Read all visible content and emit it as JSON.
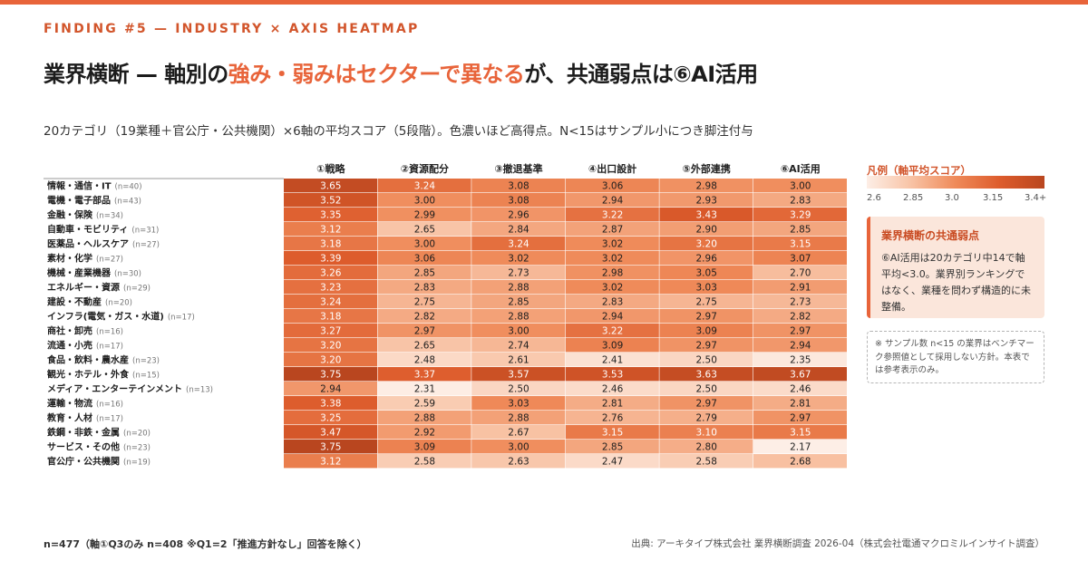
{
  "kicker": "FINDING #5 — INDUSTRY × AXIS HEATMAP",
  "headline": {
    "part1": "業界横断 — 軸別の",
    "highlight": "強み・弱みはセクターで異なる",
    "part2": "が、共通弱点は⑥AI活用"
  },
  "subtitle": "20カテゴリ（19業種＋官公庁・公共機関）×6軸の平均スコア（5段階）。色濃いほど高得点。N<15はサンプル小につき脚注付与",
  "legend": {
    "title": "凡例（軸平均スコア）",
    "ticks": [
      "2.6",
      "2.85",
      "3.0",
      "3.15",
      "3.4+"
    ]
  },
  "callout": {
    "title": "業界横断の共通弱点",
    "body": "⑥AI活用は20カテゴリ中14で軸平均<3.0。業界別ランキングではなく、業種を問わず構造的に未整備。"
  },
  "note": "※ サンプル数 n<15 の業界はベンチマーク参照値として採用しない方針。本表では参考表示のみ。",
  "footer": {
    "left": "n=477（軸①Q3のみ n=408 ※Q1=2「推進方針なし」回答を除く）",
    "right": "出典: アーキタイプ株式会社 業界横断調査 2026-04（株式会社電通マクロミルインサイト調査）"
  },
  "colors": {
    "accent": "#e8643a",
    "scale": [
      "#fdeee6",
      "#f8c3a5",
      "#ef8a59",
      "#dd5c2c",
      "#b9461f"
    ]
  },
  "chart_data": {
    "type": "heatmap",
    "columns": [
      "①戦略",
      "②資源配分",
      "③撤退基準",
      "④出口設計",
      "⑤外部連携",
      "⑥AI活用"
    ],
    "rows": [
      {
        "label": "情報・通信・IT",
        "n": "(n=40)",
        "values": [
          3.65,
          3.24,
          3.08,
          3.06,
          2.98,
          3.0
        ]
      },
      {
        "label": "電機・電子部品",
        "n": "(n=43)",
        "values": [
          3.52,
          3.0,
          3.08,
          2.94,
          2.93,
          2.83
        ]
      },
      {
        "label": "金融・保険",
        "n": "(n=34)",
        "values": [
          3.35,
          2.99,
          2.96,
          3.22,
          3.43,
          3.29
        ]
      },
      {
        "label": "自動車・モビリティ",
        "n": "(n=31)",
        "values": [
          3.12,
          2.65,
          2.84,
          2.87,
          2.9,
          2.85
        ]
      },
      {
        "label": "医薬品・ヘルスケア",
        "n": "(n=27)",
        "values": [
          3.18,
          3.0,
          3.24,
          3.02,
          3.2,
          3.15
        ]
      },
      {
        "label": "素材・化学",
        "n": "(n=27)",
        "values": [
          3.39,
          3.06,
          3.02,
          3.02,
          2.96,
          3.07
        ]
      },
      {
        "label": "機械・産業機器",
        "n": "(n=30)",
        "values": [
          3.26,
          2.85,
          2.73,
          2.98,
          3.05,
          2.7
        ]
      },
      {
        "label": "エネルギー・資源",
        "n": "(n=29)",
        "values": [
          3.23,
          2.83,
          2.88,
          3.02,
          3.03,
          2.91
        ]
      },
      {
        "label": "建設・不動産",
        "n": "(n=20)",
        "values": [
          3.24,
          2.75,
          2.85,
          2.83,
          2.75,
          2.73
        ]
      },
      {
        "label": "インフラ(電気・ガス・水道)",
        "n": "(n=17)",
        "values": [
          3.18,
          2.82,
          2.88,
          2.94,
          2.97,
          2.82
        ]
      },
      {
        "label": "商社・卸売",
        "n": "(n=16)",
        "values": [
          3.27,
          2.97,
          3.0,
          3.22,
          3.09,
          2.97
        ]
      },
      {
        "label": "流通・小売",
        "n": "(n=17)",
        "values": [
          3.2,
          2.65,
          2.74,
          3.09,
          2.97,
          2.94
        ]
      },
      {
        "label": "食品・飲料・農水産",
        "n": "(n=23)",
        "values": [
          3.2,
          2.48,
          2.61,
          2.41,
          2.5,
          2.35
        ]
      },
      {
        "label": "観光・ホテル・外食",
        "n": "(n=15)",
        "values": [
          3.75,
          3.37,
          3.57,
          3.53,
          3.63,
          3.67
        ]
      },
      {
        "label": "メディア・エンターテインメント",
        "n": "(n=13)",
        "values": [
          2.94,
          2.31,
          2.5,
          2.46,
          2.5,
          2.46
        ]
      },
      {
        "label": "運輸・物流",
        "n": "(n=16)",
        "values": [
          3.38,
          2.59,
          3.03,
          2.81,
          2.97,
          2.81
        ]
      },
      {
        "label": "教育・人材",
        "n": "(n=17)",
        "values": [
          3.25,
          2.88,
          2.88,
          2.76,
          2.79,
          2.97
        ]
      },
      {
        "label": "鉄鋼・非鉄・金属",
        "n": "(n=20)",
        "values": [
          3.47,
          2.92,
          2.67,
          3.15,
          3.1,
          3.15
        ]
      },
      {
        "label": "サービス・その他",
        "n": "(n=23)",
        "values": [
          3.75,
          3.09,
          3.0,
          2.85,
          2.8,
          2.17
        ]
      },
      {
        "label": "官公庁・公共機関",
        "n": "(n=19)",
        "values": [
          3.12,
          2.58,
          2.63,
          2.47,
          2.58,
          2.68
        ]
      }
    ],
    "scale_range": [
      2.6,
      3.4
    ]
  }
}
